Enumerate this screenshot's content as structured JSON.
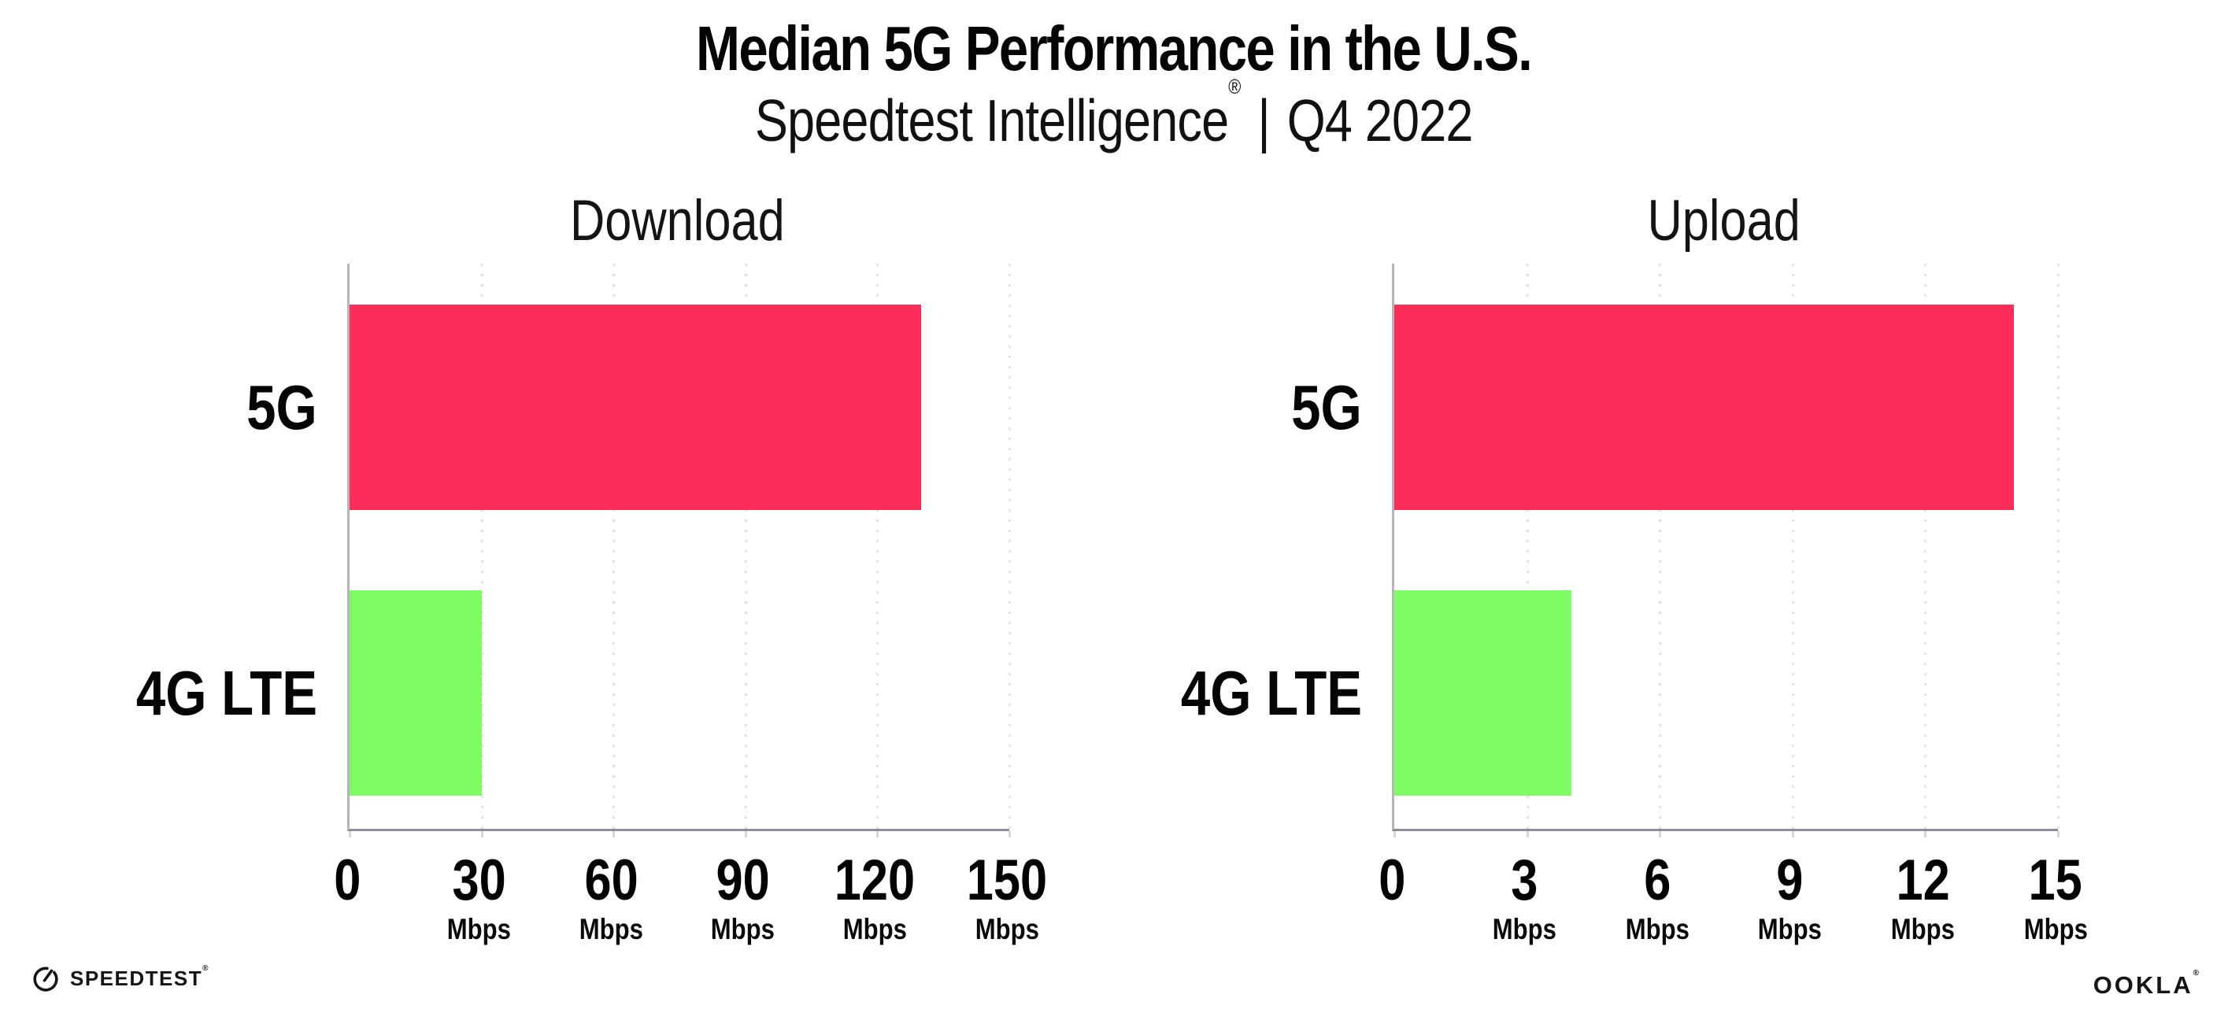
{
  "header": {
    "title": "Median 5G Performance in the U.S.",
    "subtitle_brand": "Speedtest Intelligence",
    "subtitle_reg": "®",
    "subtitle_sep": "|",
    "subtitle_period": "Q4 2022"
  },
  "colors": {
    "bar_5g": "#FC2D58",
    "bar_4g_lte": "#80FB64",
    "gridline": "#e2e2ec",
    "axis_left_spine": "#b4b4bc",
    "axis_bottom_spine": "#8e8e96"
  },
  "chart_data": [
    {
      "type": "bar",
      "orientation": "horizontal",
      "title": "Download",
      "categories": [
        "5G",
        "4G LTE"
      ],
      "values": [
        130,
        30
      ],
      "bar_colors": [
        "#FC2D58",
        "#80FB64"
      ],
      "unit": "Mbps",
      "xlim": [
        0,
        150
      ],
      "xticks": [
        0,
        30,
        60,
        90,
        120,
        150
      ],
      "unit_label_on_zero_tick": false,
      "grid": "vertical-dotted",
      "legend": "none"
    },
    {
      "type": "bar",
      "orientation": "horizontal",
      "title": "Upload",
      "categories": [
        "5G",
        "4G LTE"
      ],
      "values": [
        14,
        4
      ],
      "bar_colors": [
        "#FC2D58",
        "#80FB64"
      ],
      "unit": "Mbps",
      "xlim": [
        0,
        15
      ],
      "xticks": [
        0,
        3,
        6,
        9,
        12,
        15
      ],
      "unit_label_on_zero_tick": false,
      "grid": "vertical-dotted",
      "legend": "none"
    }
  ],
  "footer": {
    "speedtest_label": "SPEEDTEST",
    "speedtest_reg": "®",
    "ookla_label": "OOKLA",
    "ookla_reg": "®"
  }
}
